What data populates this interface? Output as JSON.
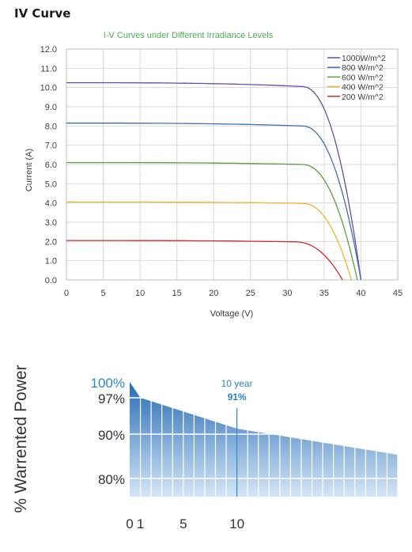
{
  "section_title": "IV Curve",
  "chart_data": [
    {
      "type": "line",
      "title": "I-V Curves under Different Irradiance Levels",
      "xlabel": "Voltage (V)",
      "ylabel": "Current (A)",
      "xlim": [
        0,
        45
      ],
      "ylim": [
        0,
        12
      ],
      "xticks": [
        "0",
        "5",
        "10",
        "15",
        "20",
        "25",
        "30",
        "35",
        "40",
        "45"
      ],
      "yticks": [
        "0.0",
        "1.0",
        "2.0",
        "3.0",
        "4.0",
        "5.0",
        "6.0",
        "7.0",
        "8.0",
        "9.0",
        "10.0",
        "11.0",
        "12.0"
      ],
      "grid": true,
      "legend": "top-right",
      "series": [
        {
          "name": "1000W/m^2",
          "color": "#6a4ca3",
          "isc": 10.25,
          "knee_v": 32.0,
          "knee_i": 10.05,
          "voc": 40.0
        },
        {
          "name": "800  W/m^2",
          "color": "#3f6fb4",
          "isc": 8.15,
          "knee_v": 32.0,
          "knee_i": 8.0,
          "voc": 40.0
        },
        {
          "name": "600  W/m^2",
          "color": "#5a9e3e",
          "isc": 6.1,
          "knee_v": 32.0,
          "knee_i": 6.0,
          "voc": 39.5
        },
        {
          "name": "400  W/m^2",
          "color": "#f0b52b",
          "isc": 4.05,
          "knee_v": 32.0,
          "knee_i": 3.98,
          "voc": 38.7
        },
        {
          "name": "200  W/m^2",
          "color": "#d12d2d",
          "isc": 2.05,
          "knee_v": 31.0,
          "knee_i": 1.98,
          "voc": 37.5
        }
      ]
    },
    {
      "type": "area",
      "ylabel": "% Warrented Power",
      "yticks": [
        "100%",
        "97%",
        "90%",
        "80%"
      ],
      "xticks": [
        "0",
        "1",
        "5",
        "10"
      ],
      "x": [
        0,
        1,
        10,
        25
      ],
      "values": [
        100,
        97,
        91,
        84
      ],
      "annotation_label": "10 year",
      "annotation_value": "91%",
      "fill_top_color": "#2a6db5",
      "fill_bottom_color": "#d4e6f7",
      "accent_color": "#2a86c8"
    }
  ]
}
